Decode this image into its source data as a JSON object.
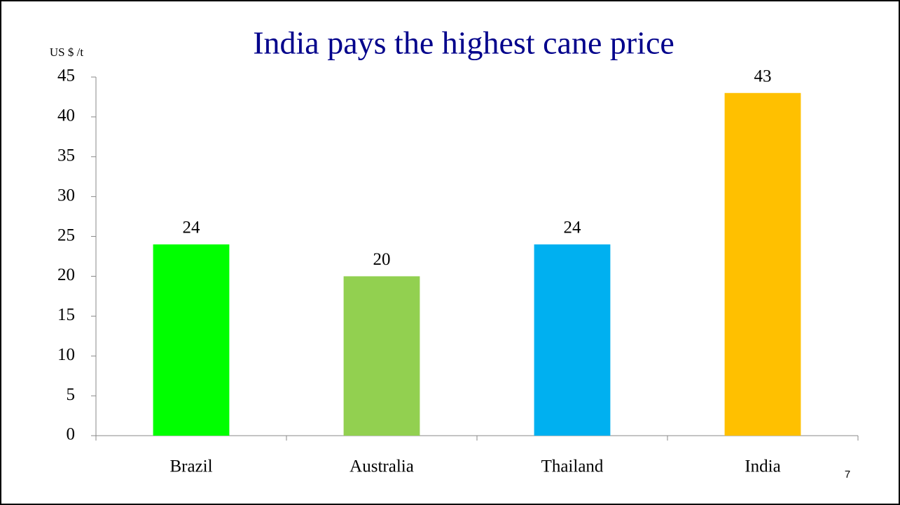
{
  "chart_data": {
    "type": "bar",
    "title": "India pays the highest cane price",
    "y_label": "US $ /t",
    "categories": [
      "Brazil",
      "Australia",
      "Thailand",
      "India"
    ],
    "values": [
      24,
      20,
      24,
      43
    ],
    "colors": [
      "#00ff00",
      "#92d050",
      "#00b0f0",
      "#ffc000"
    ],
    "ylim": [
      0,
      45
    ],
    "yticks": [
      0,
      5,
      10,
      15,
      20,
      25,
      30,
      35,
      40,
      45
    ],
    "grid": false,
    "data_labels": true
  },
  "slide_number": "7"
}
